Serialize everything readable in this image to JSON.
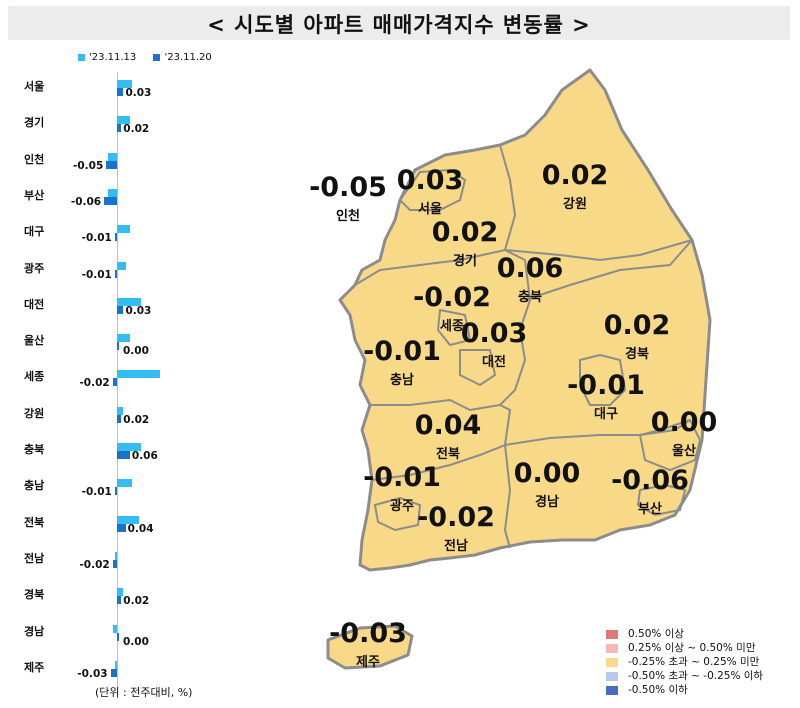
{
  "title": "< 시도별 아파트 매매가격지수 변동률 >",
  "unit_note": "(단위 : 전주대비, %)",
  "colors": {
    "series_prev": "#33bdf2",
    "series_curr": "#1a73c8",
    "map_fill": "#f8d987",
    "map_stroke": "#8c8c8c",
    "title_bg": "#ececec"
  },
  "chart_data": [
    {
      "type": "bar",
      "orientation": "horizontal",
      "categories": [
        "서울",
        "경기",
        "인천",
        "부산",
        "대구",
        "광주",
        "대전",
        "울산",
        "세종",
        "강원",
        "충북",
        "충남",
        "전북",
        "전남",
        "경북",
        "경남",
        "제주"
      ],
      "series": [
        {
          "name": "'23.11.13",
          "values": [
            0.07,
            0.06,
            -0.04,
            -0.04,
            0.06,
            0.04,
            0.11,
            0.06,
            0.2,
            0.03,
            0.11,
            0.07,
            0.1,
            -0.01,
            0.03,
            -0.02,
            -0.01
          ]
        },
        {
          "name": "'23.11.20",
          "values": [
            0.03,
            0.02,
            -0.05,
            -0.06,
            -0.01,
            -0.01,
            0.03,
            0.0,
            -0.02,
            0.02,
            0.06,
            -0.01,
            0.04,
            -0.02,
            0.02,
            0.0,
            -0.03
          ]
        }
      ],
      "data_labels": [
        "0.03",
        "0.02",
        "-0.05",
        "-0.06",
        "-0.01",
        "-0.01",
        "0.03",
        "0.00",
        "-0.02",
        "0.02",
        "0.06",
        "-0.01",
        "0.04",
        "-0.02",
        "0.02",
        "0.00",
        "-0.03"
      ],
      "legend_position": "top"
    },
    {
      "type": "map",
      "regions": [
        {
          "name": "인천",
          "value": "-0.05"
        },
        {
          "name": "서울",
          "value": "0.03"
        },
        {
          "name": "강원",
          "value": "0.02"
        },
        {
          "name": "경기",
          "value": "0.02"
        },
        {
          "name": "충북",
          "value": "0.06"
        },
        {
          "name": "세종",
          "value": "-0.02"
        },
        {
          "name": "대전",
          "value": "0.03"
        },
        {
          "name": "충남",
          "value": "-0.01"
        },
        {
          "name": "경북",
          "value": "0.02"
        },
        {
          "name": "대구",
          "value": "-0.01"
        },
        {
          "name": "전북",
          "value": "0.04"
        },
        {
          "name": "울산",
          "value": "0.00"
        },
        {
          "name": "광주",
          "value": "-0.01"
        },
        {
          "name": "경남",
          "value": "0.00"
        },
        {
          "name": "부산",
          "value": "-0.06"
        },
        {
          "name": "전남",
          "value": "-0.02"
        },
        {
          "name": "제주",
          "value": "-0.03"
        }
      ],
      "legend": [
        {
          "label": "0.50% 이상",
          "color": "#e07a7a"
        },
        {
          "label": "0.25% 이상 ~ 0.50% 미만",
          "color": "#f4b8b8"
        },
        {
          "label": "-0.25% 초과 ~ 0.25% 미만",
          "color": "#f8d987"
        },
        {
          "label": "-0.50% 초과 ~ -0.25% 이하",
          "color": "#b9c8ea"
        },
        {
          "label": "-0.50% 이하",
          "color": "#4a6cc0"
        }
      ]
    }
  ]
}
